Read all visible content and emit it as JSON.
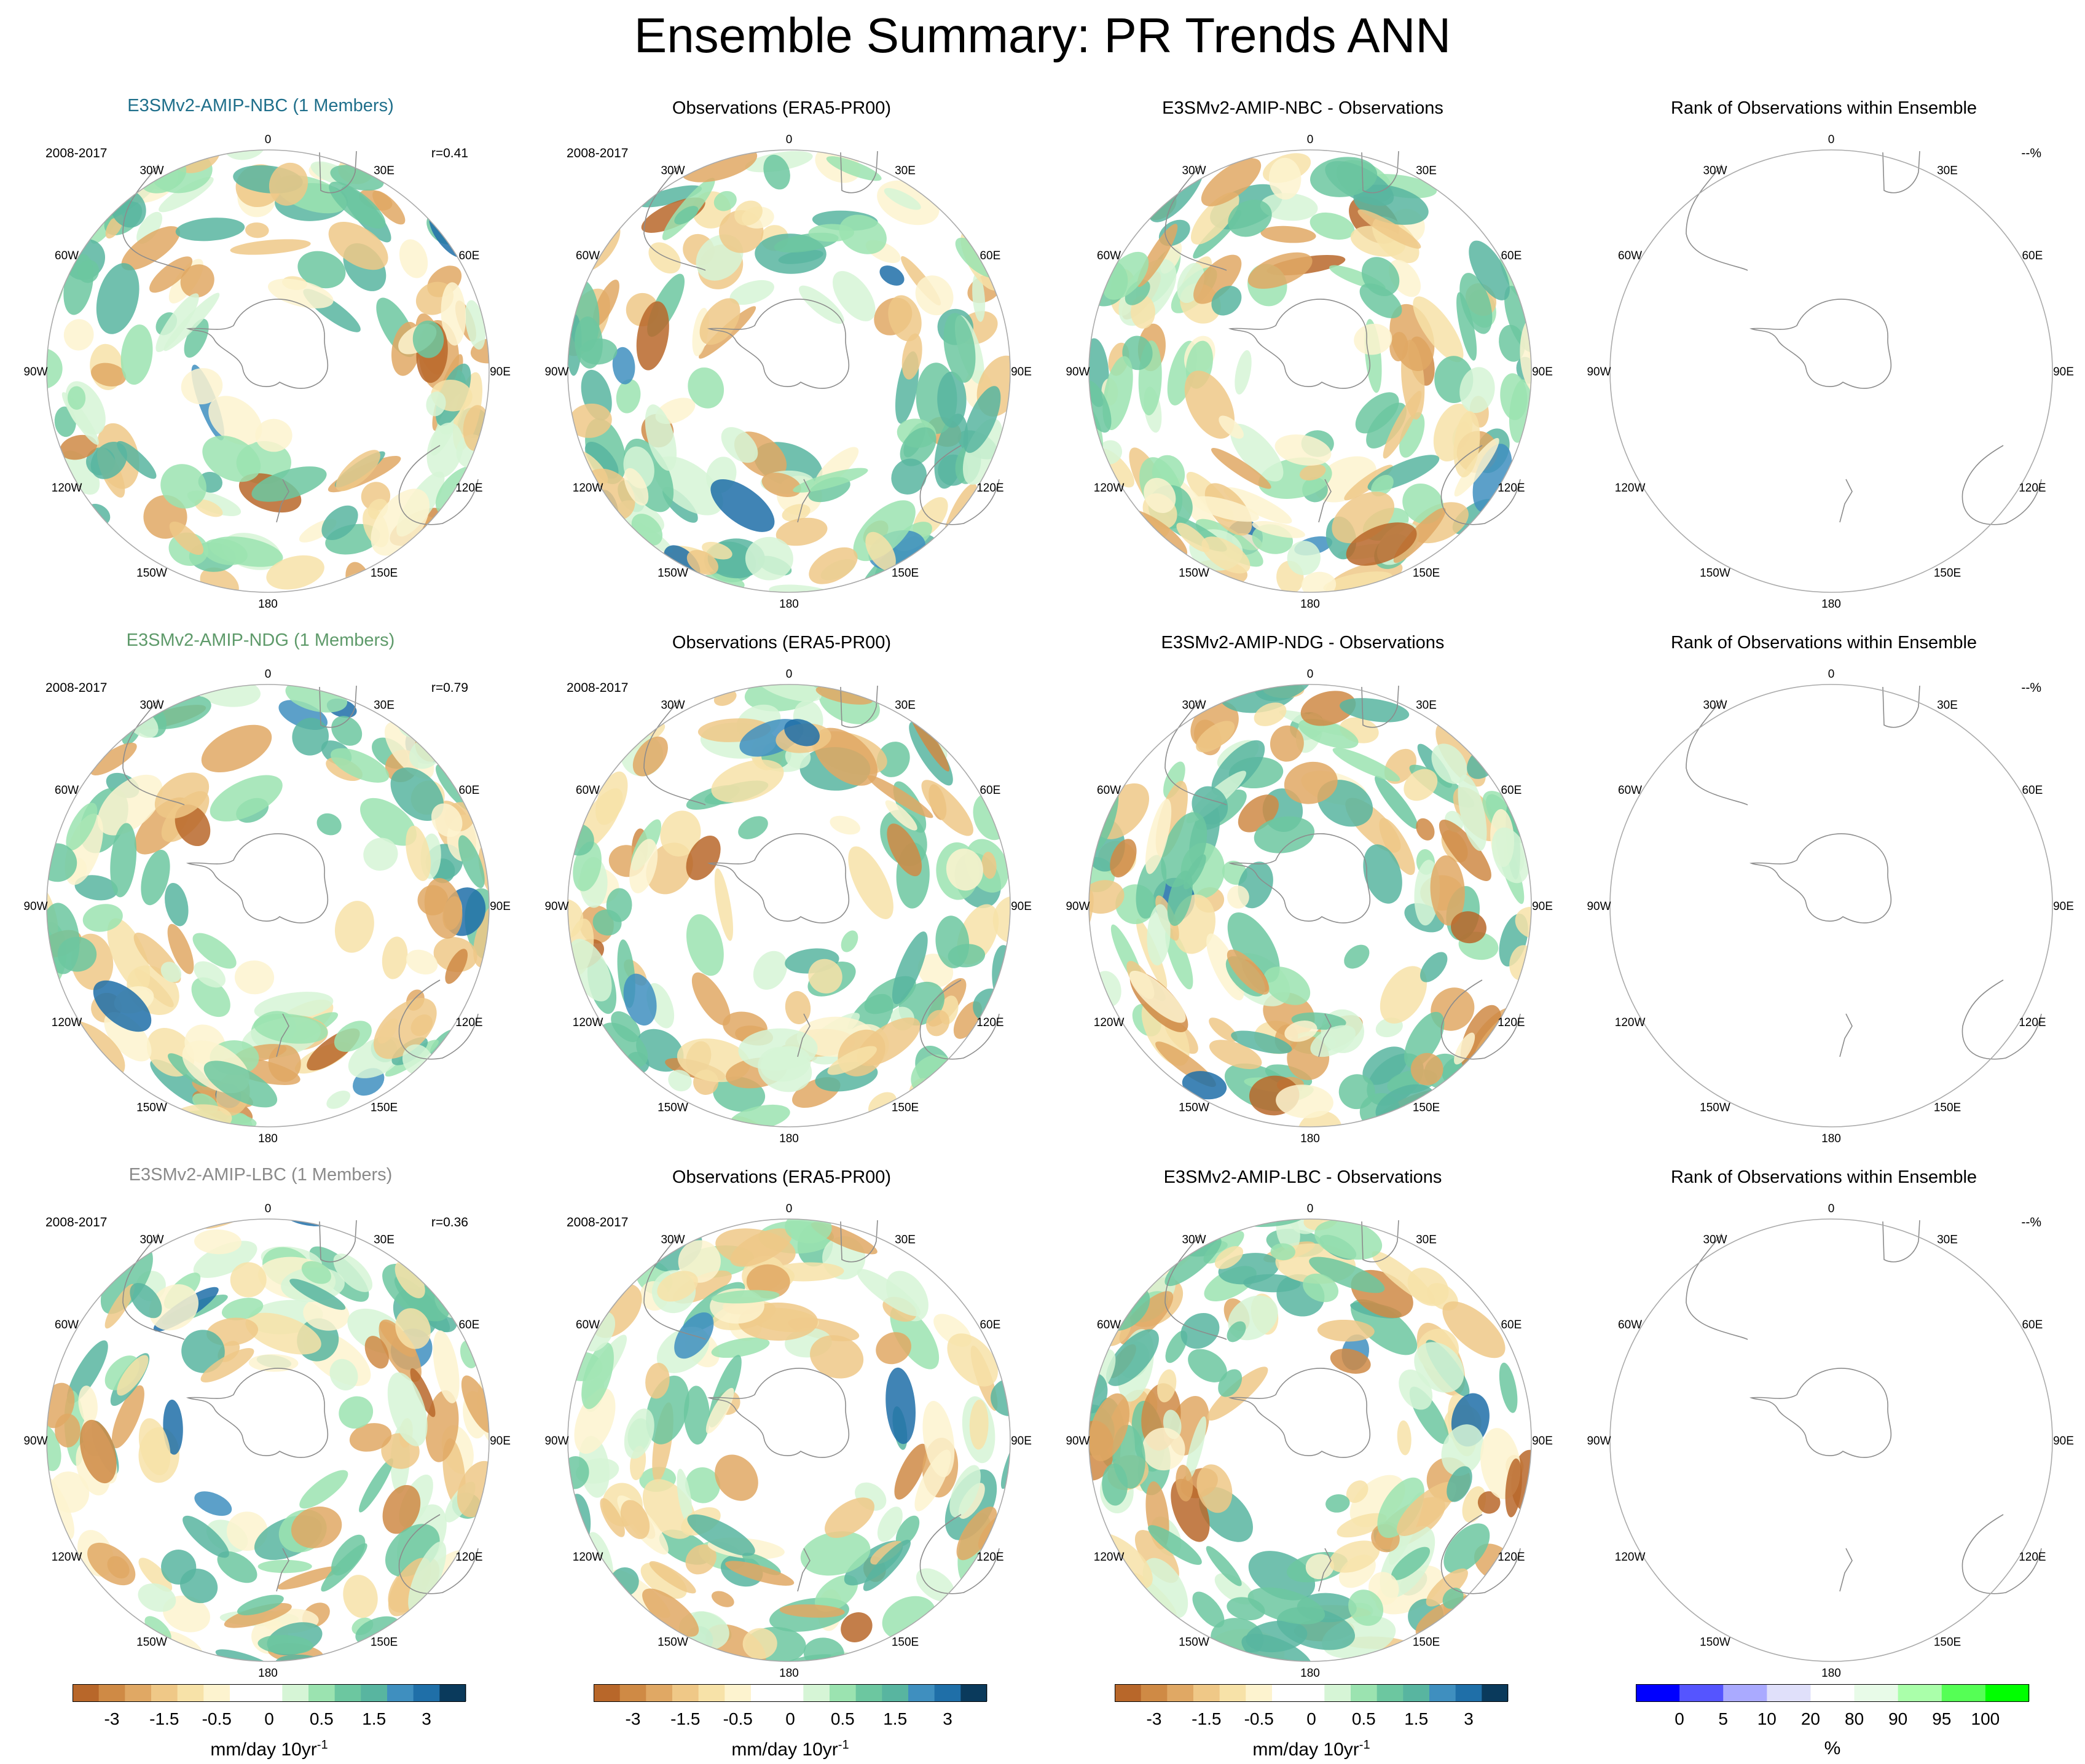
{
  "title": "Ensemble Summary: PR Trends ANN",
  "lon_labels": {
    "l0": "0",
    "l30e": "30E",
    "l60e": "60E",
    "l90e": "90E",
    "l120e": "120E",
    "l150e": "150E",
    "l180": "180",
    "l150w": "150W",
    "l120w": "120W",
    "l90w": "90W",
    "l60w": "60W",
    "l30w": "30W"
  },
  "rows": [
    {
      "model_title": "E3SMv2-AMIP-NBC (1 Members)",
      "model_color": "#1f6f8b",
      "period": "2008-2017",
      "correlation": "r=0.41",
      "obs_title": "Observations (ERA5-PR00)",
      "diff_title": "E3SMv2-AMIP-NBC - Observations",
      "rank_title": "Rank of Observations within Ensemble",
      "rank_stat": "--%"
    },
    {
      "model_title": "E3SMv2-AMIP-NDG (1 Members)",
      "model_color": "#5e9a6a",
      "period": "2008-2017",
      "correlation": "r=0.79",
      "obs_title": "Observations (ERA5-PR00)",
      "diff_title": "E3SMv2-AMIP-NDG - Observations",
      "rank_title": "Rank of Observations within Ensemble",
      "rank_stat": "--%"
    },
    {
      "model_title": "E3SMv2-AMIP-LBC (1 Members)",
      "model_color": "#8a8a8a",
      "period": "2008-2017",
      "correlation": "r=0.36",
      "obs_title": "Observations (ERA5-PR00)",
      "diff_title": "E3SMv2-AMIP-LBC - Observations",
      "rank_title": "Rank of Observations within Ensemble",
      "rank_stat": "--%"
    }
  ],
  "chart_data": {
    "type": "heatmap",
    "title": "Ensemble Summary: PR Trends ANN",
    "projection": "south polar stereographic",
    "trend_colorbar": {
      "units": "mm/day 10yr",
      "units_superscript": "-1",
      "tick_labels": [
        "-3",
        "-1.5",
        "-0.5",
        "0",
        "0.5",
        "1.5",
        "3"
      ],
      "colors": [
        "#b8672a",
        "#cf8a45",
        "#e0a864",
        "#efc887",
        "#f7e2a8",
        "#fdf3cf",
        "#ffffff",
        "#ffffff",
        "#d6f5d6",
        "#9be3b0",
        "#6cc7a0",
        "#58b5a0",
        "#3f8fbf",
        "#1f6fa8",
        "#0a3a5c"
      ]
    },
    "rank_colorbar": {
      "units": "%",
      "tick_labels": [
        "0",
        "5",
        "10",
        "20",
        "80",
        "90",
        "95",
        "100"
      ],
      "colors": [
        "#0000ff",
        "#5555ff",
        "#aaaaff",
        "#e0e0fa",
        "#ffffff",
        "#e8fbe8",
        "#aaffaa",
        "#55ff55",
        "#00ff00"
      ]
    },
    "correlations": [
      0.41,
      0.79,
      0.36
    ]
  }
}
